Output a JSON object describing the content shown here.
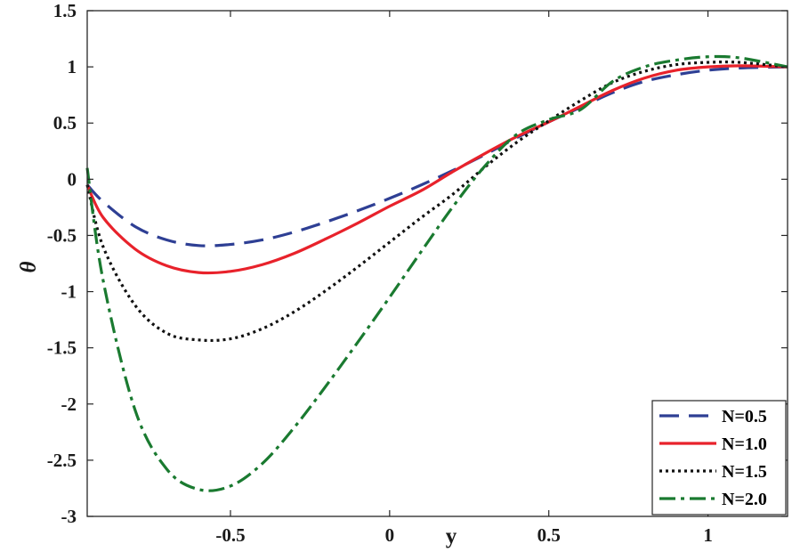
{
  "chart_data": {
    "type": "line",
    "title": "",
    "xlabel": "y",
    "ylabel": "θ",
    "xlim": [
      -0.95,
      1.25
    ],
    "ylim": [
      -3,
      1.5
    ],
    "xticks": [
      -0.5,
      0,
      0.5,
      1
    ],
    "xtick_labels": [
      "-0.5",
      "0",
      "0.5",
      "1"
    ],
    "yticks": [
      -3,
      -2.5,
      -2,
      -1.5,
      -1,
      -0.5,
      0,
      0.5,
      1,
      1.5
    ],
    "ytick_labels": [
      "-3",
      "-2.5",
      "-2",
      "-1.5",
      "-1",
      "-0.5",
      "0",
      "0.5",
      "1",
      "1.5"
    ],
    "grid": false,
    "legend_position": "bottom-right",
    "x": [
      -0.95,
      -0.9,
      -0.8,
      -0.7,
      -0.6,
      -0.5,
      -0.4,
      -0.3,
      -0.2,
      -0.1,
      0.0,
      0.1,
      0.2,
      0.3,
      0.4,
      0.5,
      0.6,
      0.7,
      0.8,
      0.9,
      1.0,
      1.1,
      1.25
    ],
    "series": [
      {
        "name": "N=0.5",
        "color": "#2e3f94",
        "dash": "22,11",
        "values": [
          -0.05,
          -0.2,
          -0.42,
          -0.54,
          -0.59,
          -0.58,
          -0.54,
          -0.47,
          -0.38,
          -0.28,
          -0.17,
          -0.05,
          0.08,
          0.22,
          0.37,
          0.51,
          0.64,
          0.77,
          0.87,
          0.93,
          0.97,
          0.99,
          1.0
        ]
      },
      {
        "name": "N=1.0",
        "color": "#e8222b",
        "dash": "",
        "values": [
          -0.05,
          -0.34,
          -0.62,
          -0.77,
          -0.83,
          -0.82,
          -0.76,
          -0.66,
          -0.53,
          -0.39,
          -0.24,
          -0.1,
          0.07,
          0.23,
          0.38,
          0.51,
          0.65,
          0.79,
          0.9,
          0.97,
          1.0,
          1.01,
          1.0
        ]
      },
      {
        "name": "N=1.5",
        "color": "#111111",
        "dash": "3,4",
        "values": [
          -0.05,
          -0.6,
          -1.12,
          -1.37,
          -1.43,
          -1.42,
          -1.33,
          -1.18,
          -0.99,
          -0.78,
          -0.56,
          -0.34,
          -0.13,
          0.11,
          0.33,
          0.52,
          0.7,
          0.86,
          0.96,
          1.02,
          1.04,
          1.04,
          1.0
        ]
      },
      {
        "name": "N=2.0",
        "color": "#1a7a30",
        "dash": "18,6,4,6",
        "values": [
          0.1,
          -0.9,
          -2.05,
          -2.58,
          -2.76,
          -2.73,
          -2.53,
          -2.21,
          -1.84,
          -1.45,
          -1.05,
          -0.64,
          -0.24,
          0.12,
          0.4,
          0.53,
          0.62,
          0.87,
          1.0,
          1.06,
          1.09,
          1.08,
          1.0
        ]
      }
    ]
  }
}
